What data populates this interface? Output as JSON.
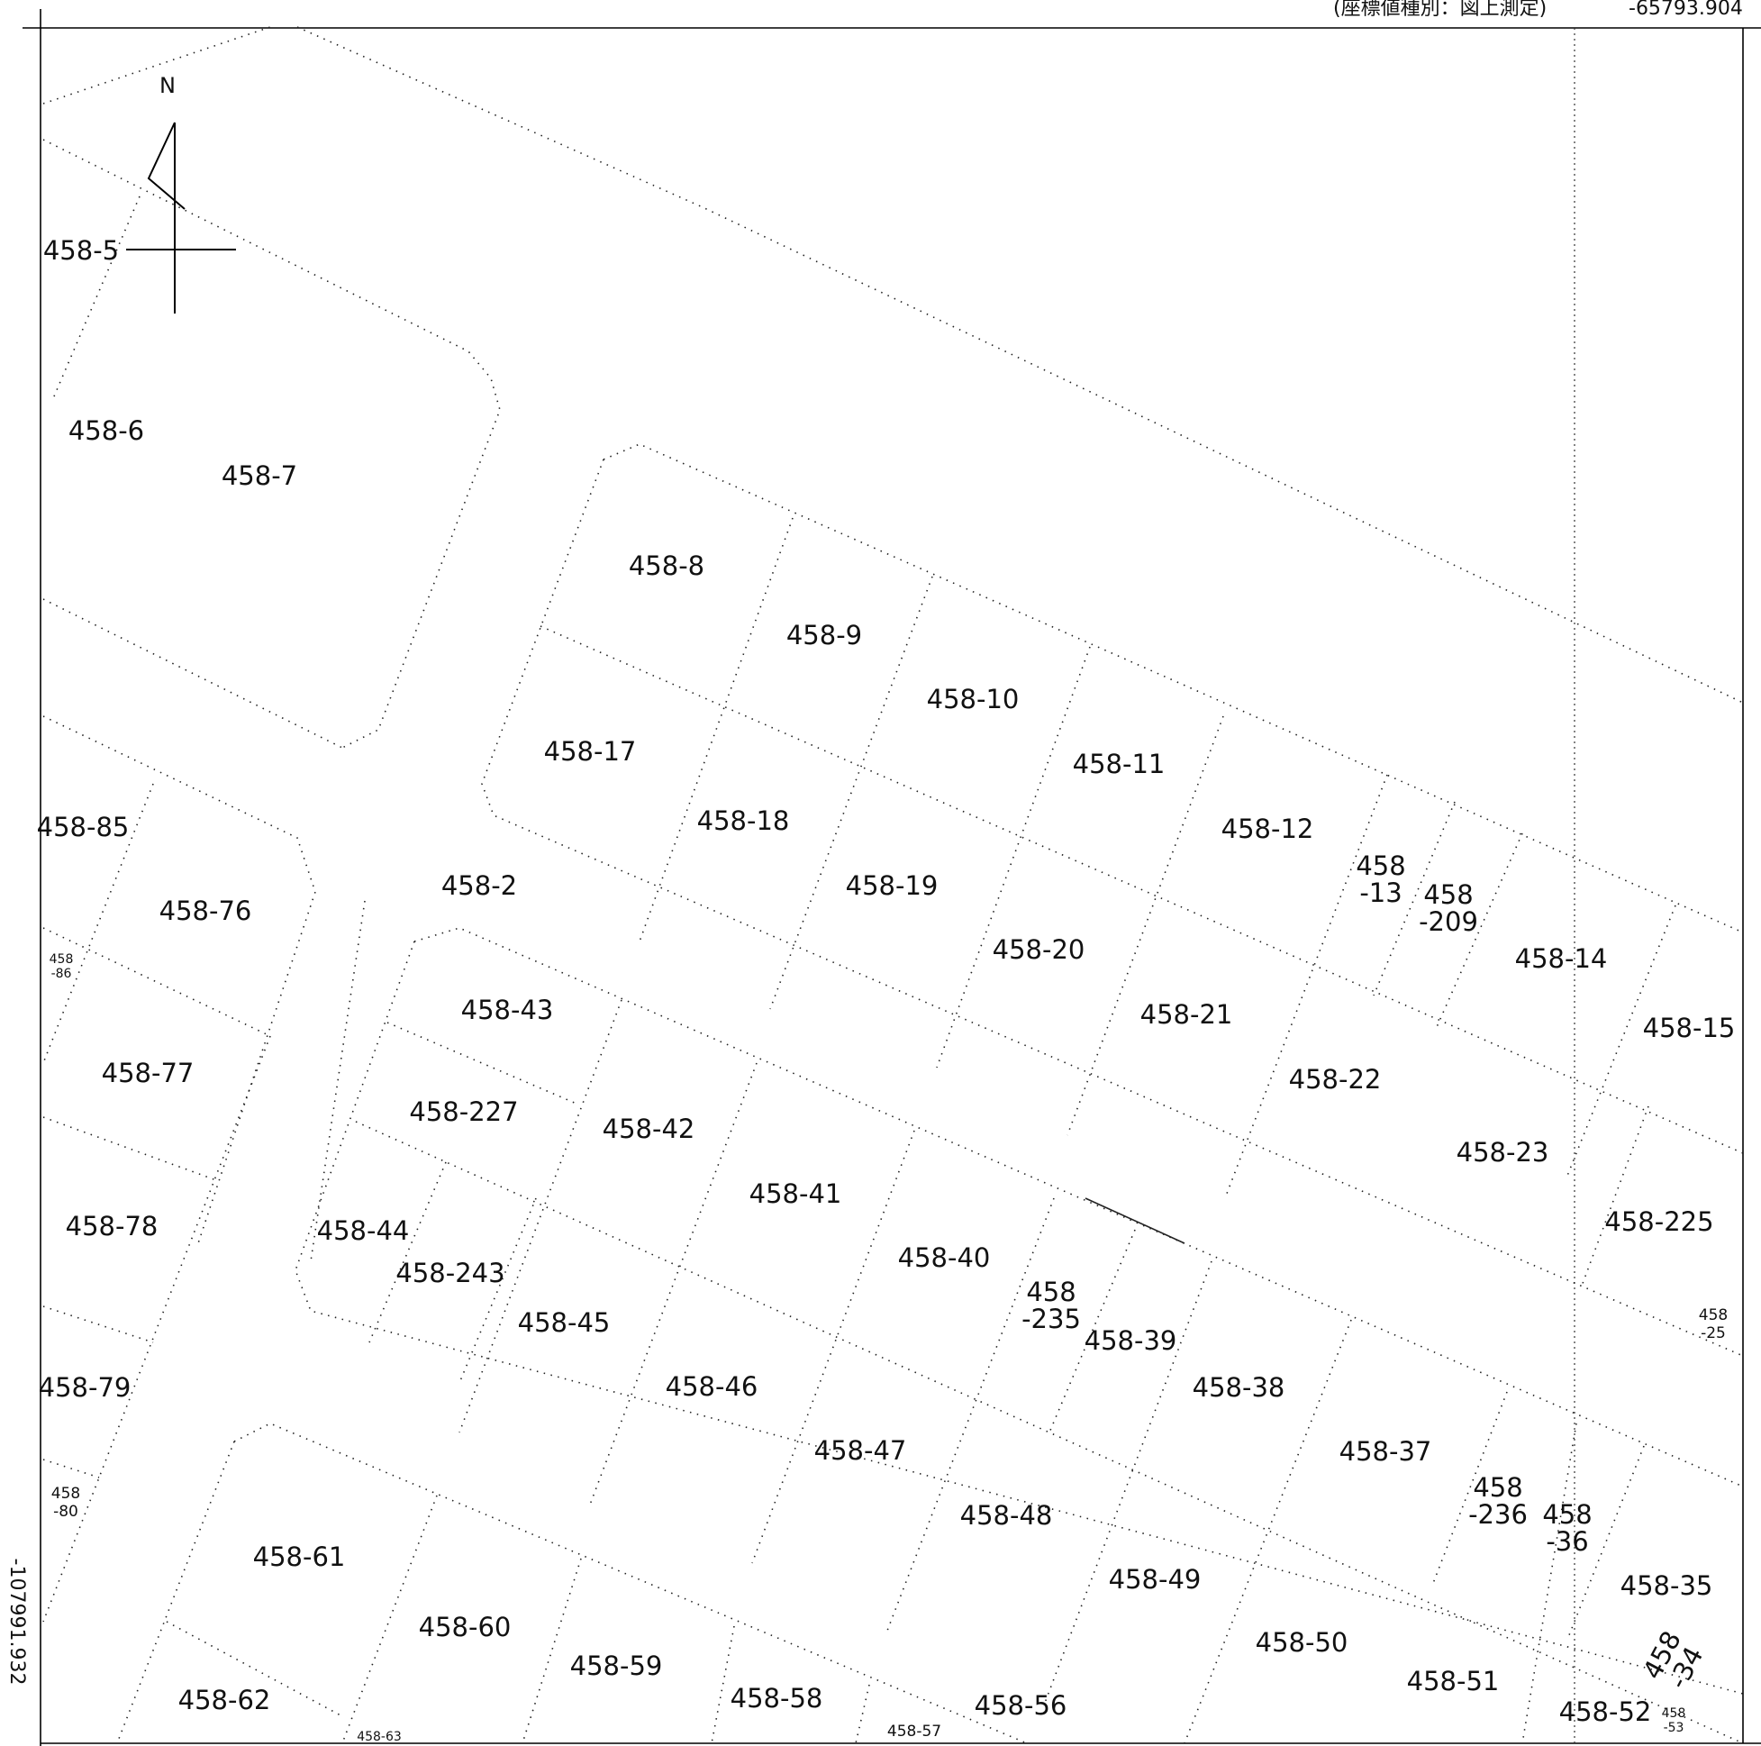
{
  "header": {
    "coord_type": "(座標値種別：図上測定)",
    "top_coordinate": "-65793.904",
    "left_coordinate": "-107991.932"
  },
  "north_arrow": {
    "label": "N"
  },
  "parcels": [
    {
      "id": "458-5",
      "lines": [
        "458-5"
      ],
      "size": "normal"
    },
    {
      "id": "458-6",
      "lines": [
        "458-6"
      ],
      "size": "normal"
    },
    {
      "id": "458-7",
      "lines": [
        "458-7"
      ],
      "size": "normal"
    },
    {
      "id": "458-8",
      "lines": [
        "458-8"
      ],
      "size": "normal"
    },
    {
      "id": "458-9",
      "lines": [
        "458-9"
      ],
      "size": "normal"
    },
    {
      "id": "458-10",
      "lines": [
        "458-10"
      ],
      "size": "normal"
    },
    {
      "id": "458-11",
      "lines": [
        "458-11"
      ],
      "size": "normal"
    },
    {
      "id": "458-12",
      "lines": [
        "458-12"
      ],
      "size": "normal"
    },
    {
      "id": "458-13",
      "lines": [
        "458",
        "-13"
      ],
      "size": "normal"
    },
    {
      "id": "458-209",
      "lines": [
        "458",
        "-209"
      ],
      "size": "normal"
    },
    {
      "id": "458-14",
      "lines": [
        "458-14"
      ],
      "size": "normal"
    },
    {
      "id": "458-15",
      "lines": [
        "458-15"
      ],
      "size": "normal"
    },
    {
      "id": "458-17",
      "lines": [
        "458-17"
      ],
      "size": "normal"
    },
    {
      "id": "458-18",
      "lines": [
        "458-18"
      ],
      "size": "normal"
    },
    {
      "id": "458-19",
      "lines": [
        "458-19"
      ],
      "size": "normal"
    },
    {
      "id": "458-20",
      "lines": [
        "458-20"
      ],
      "size": "normal"
    },
    {
      "id": "458-21",
      "lines": [
        "458-21"
      ],
      "size": "normal"
    },
    {
      "id": "458-22",
      "lines": [
        "458-22"
      ],
      "size": "normal"
    },
    {
      "id": "458-23",
      "lines": [
        "458-23"
      ],
      "size": "normal"
    },
    {
      "id": "458-225",
      "lines": [
        "458-225"
      ],
      "size": "normal"
    },
    {
      "id": "458-25",
      "lines": [
        "458",
        "-25"
      ],
      "size": "small"
    },
    {
      "id": "458-2",
      "lines": [
        "458-2"
      ],
      "size": "normal"
    },
    {
      "id": "458-85",
      "lines": [
        "458-85"
      ],
      "size": "normal"
    },
    {
      "id": "458-76",
      "lines": [
        "458-76"
      ],
      "size": "normal"
    },
    {
      "id": "458-86",
      "lines": [
        "458",
        "-86"
      ],
      "size": "tiny"
    },
    {
      "id": "458-77",
      "lines": [
        "458-77"
      ],
      "size": "normal"
    },
    {
      "id": "458-78",
      "lines": [
        "458-78"
      ],
      "size": "normal"
    },
    {
      "id": "458-79",
      "lines": [
        "458-79"
      ],
      "size": "normal"
    },
    {
      "id": "458-80",
      "lines": [
        "458",
        "-80"
      ],
      "size": "small"
    },
    {
      "id": "458-43",
      "lines": [
        "458-43"
      ],
      "size": "normal"
    },
    {
      "id": "458-227",
      "lines": [
        "458-227"
      ],
      "size": "normal"
    },
    {
      "id": "458-42",
      "lines": [
        "458-42"
      ],
      "size": "normal"
    },
    {
      "id": "458-41",
      "lines": [
        "458-41"
      ],
      "size": "normal"
    },
    {
      "id": "458-40",
      "lines": [
        "458-40"
      ],
      "size": "normal"
    },
    {
      "id": "458-235",
      "lines": [
        "458",
        "-235"
      ],
      "size": "normal"
    },
    {
      "id": "458-39",
      "lines": [
        "458-39"
      ],
      "size": "normal"
    },
    {
      "id": "458-38",
      "lines": [
        "458-38"
      ],
      "size": "normal"
    },
    {
      "id": "458-37",
      "lines": [
        "458-37"
      ],
      "size": "normal"
    },
    {
      "id": "458-236",
      "lines": [
        "458",
        "-236"
      ],
      "size": "normal"
    },
    {
      "id": "458-36",
      "lines": [
        "458",
        "-36"
      ],
      "size": "normal"
    },
    {
      "id": "458-35",
      "lines": [
        "458-35"
      ],
      "size": "normal"
    },
    {
      "id": "458-34",
      "lines": [
        "458",
        "-34"
      ],
      "size": "normal"
    },
    {
      "id": "458-44",
      "lines": [
        "458-44"
      ],
      "size": "normal"
    },
    {
      "id": "458-243",
      "lines": [
        "458-243"
      ],
      "size": "normal"
    },
    {
      "id": "458-45",
      "lines": [
        "458-45"
      ],
      "size": "normal"
    },
    {
      "id": "458-46",
      "lines": [
        "458-46"
      ],
      "size": "normal"
    },
    {
      "id": "458-47",
      "lines": [
        "458-47"
      ],
      "size": "normal"
    },
    {
      "id": "458-48",
      "lines": [
        "458-48"
      ],
      "size": "normal"
    },
    {
      "id": "458-49",
      "lines": [
        "458-49"
      ],
      "size": "normal"
    },
    {
      "id": "458-50",
      "lines": [
        "458-50"
      ],
      "size": "normal"
    },
    {
      "id": "458-51",
      "lines": [
        "458-51"
      ],
      "size": "normal"
    },
    {
      "id": "458-52",
      "lines": [
        "458-52"
      ],
      "size": "normal"
    },
    {
      "id": "458-53",
      "lines": [
        "458",
        "-53"
      ],
      "size": "tiny"
    },
    {
      "id": "458-61",
      "lines": [
        "458-61"
      ],
      "size": "normal"
    },
    {
      "id": "458-60",
      "lines": [
        "458-60"
      ],
      "size": "normal"
    },
    {
      "id": "458-59",
      "lines": [
        "458-59"
      ],
      "size": "normal"
    },
    {
      "id": "458-58",
      "lines": [
        "458-58"
      ],
      "size": "normal"
    },
    {
      "id": "458-56",
      "lines": [
        "458-56"
      ],
      "size": "normal"
    },
    {
      "id": "458-57",
      "lines": [
        "458-57"
      ],
      "size": "small"
    },
    {
      "id": "458-62",
      "lines": [
        "458-62"
      ],
      "size": "normal"
    },
    {
      "id": "458-63",
      "lines": [
        "458-63"
      ],
      "size": "tiny"
    }
  ]
}
